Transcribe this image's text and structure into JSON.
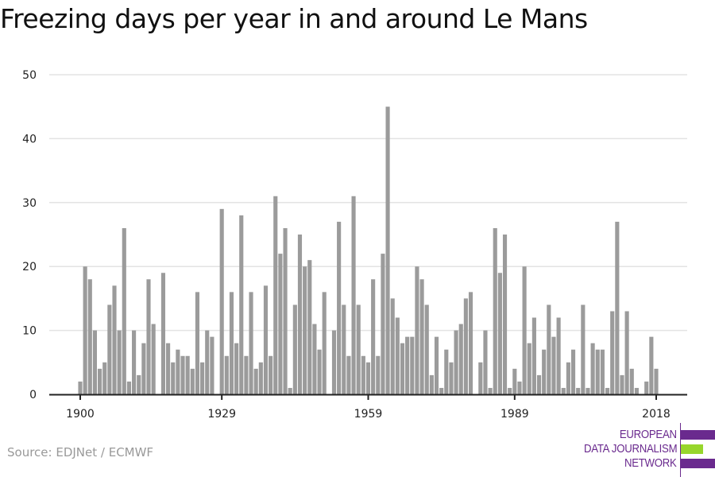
{
  "title": "Freezing days per year in and around Le Mans",
  "source": "Source: EDJNet / ECMWF",
  "logo": {
    "lines": [
      "EUROPEAN",
      "DATA JOURNALISM",
      "NETWORK"
    ],
    "colors": {
      "primary": "#6a2a8e",
      "accent": "#97d62c"
    }
  },
  "colors": {
    "bar": "#9b9b9b",
    "grid": "#e3e3e3",
    "axis": "#222222"
  },
  "chart_data": {
    "type": "bar",
    "title": "Freezing days per year in and around Le Mans",
    "xlabel": "",
    "ylabel": "",
    "ylim": [
      0,
      50
    ],
    "yticks": [
      0,
      10,
      20,
      30,
      40,
      50
    ],
    "xticks": [
      1900,
      1929,
      1959,
      1989,
      2018
    ],
    "grid": true,
    "x_start": 1900,
    "categories": [
      1900,
      1901,
      1902,
      1903,
      1904,
      1905,
      1906,
      1907,
      1908,
      1909,
      1910,
      1911,
      1912,
      1913,
      1914,
      1915,
      1916,
      1917,
      1918,
      1919,
      1920,
      1921,
      1922,
      1923,
      1924,
      1925,
      1926,
      1927,
      1928,
      1929,
      1930,
      1931,
      1932,
      1933,
      1934,
      1935,
      1936,
      1937,
      1938,
      1939,
      1940,
      1941,
      1942,
      1943,
      1944,
      1945,
      1946,
      1947,
      1948,
      1949,
      1950,
      1951,
      1952,
      1953,
      1954,
      1955,
      1956,
      1957,
      1958,
      1959,
      1960,
      1961,
      1962,
      1963,
      1964,
      1965,
      1966,
      1967,
      1968,
      1969,
      1970,
      1971,
      1972,
      1973,
      1974,
      1975,
      1976,
      1977,
      1978,
      1979,
      1980,
      1981,
      1982,
      1983,
      1984,
      1985,
      1986,
      1987,
      1988,
      1989,
      1990,
      1991,
      1992,
      1993,
      1994,
      1995,
      1996,
      1997,
      1998,
      1999,
      2000,
      2001,
      2002,
      2003,
      2004,
      2005,
      2006,
      2007,
      2008,
      2009,
      2010,
      2011,
      2012,
      2013,
      2014,
      2015,
      2016,
      2017,
      2018
    ],
    "values": [
      2,
      20,
      18,
      10,
      4,
      5,
      14,
      17,
      10,
      26,
      2,
      10,
      3,
      8,
      18,
      11,
      0,
      19,
      8,
      5,
      7,
      6,
      6,
      4,
      16,
      5,
      10,
      9,
      0,
      29,
      6,
      16,
      8,
      28,
      6,
      16,
      4,
      5,
      17,
      6,
      31,
      22,
      26,
      1,
      14,
      25,
      20,
      21,
      11,
      7,
      16,
      0,
      10,
      27,
      14,
      6,
      31,
      14,
      6,
      5,
      18,
      6,
      22,
      45,
      15,
      12,
      8,
      9,
      9,
      20,
      18,
      14,
      3,
      9,
      1,
      7,
      5,
      10,
      11,
      15,
      16,
      0,
      5,
      10,
      1,
      26,
      19,
      25,
      1,
      4,
      2,
      20,
      8,
      12,
      3,
      7,
      14,
      9,
      12,
      1,
      5,
      7,
      1,
      14,
      1,
      8,
      7,
      7,
      1,
      13,
      27,
      3,
      13,
      4,
      1,
      0,
      2,
      9,
      4
    ]
  }
}
